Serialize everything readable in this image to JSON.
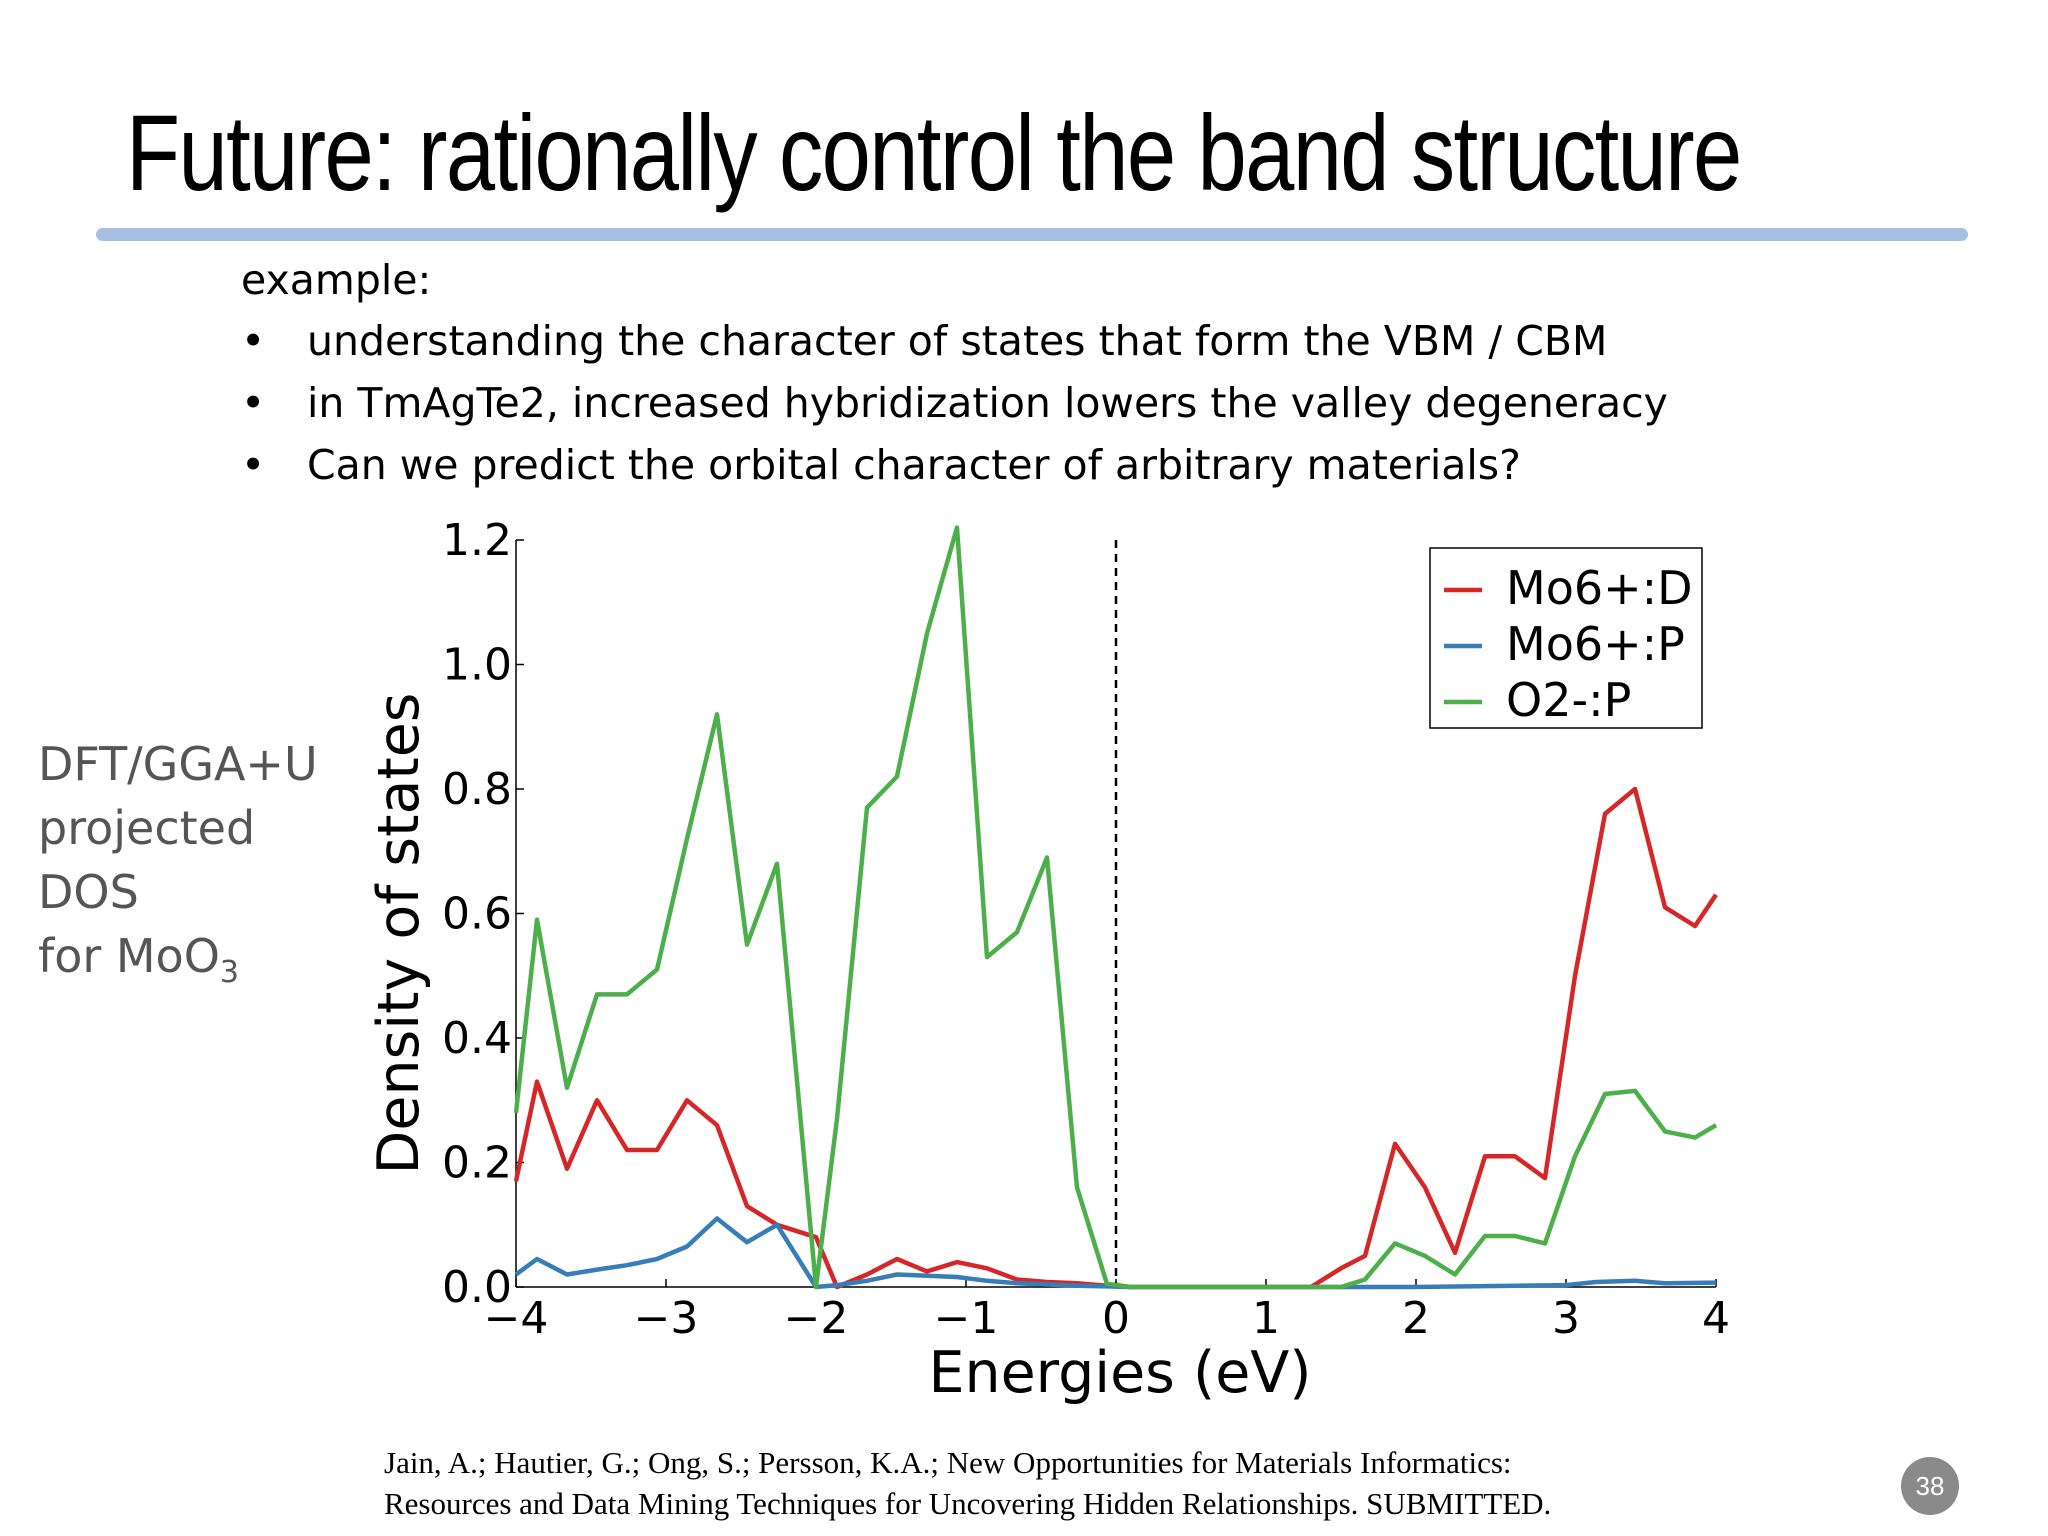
{
  "slide": {
    "title": "Future: rationally control the band structure",
    "intro": "example:",
    "bullet_mark": "•",
    "bullets": [
      "understanding the character of states that form the VBM / CBM",
      "in TmAgTe2, increased hybridization lowers the valley degeneracy",
      "Can we predict the orbital character of arbitrary materials?"
    ],
    "side_label": {
      "line1": "DFT/GGA+U",
      "line2": "projected",
      "line3": "DOS",
      "line4_prefix": "for MoO",
      "line4_sub": "3"
    },
    "reference_line1": "Jain, A.; Hautier, G.; Ong, S.; Persson, K.A.; New Opportunities for Materials Informatics:",
    "reference_line2": "Resources and Data Mining Techniques for Uncovering Hidden Relationships. SUBMITTED.",
    "page_number": "38"
  },
  "colors": {
    "accent_rule": "#a7c0e2",
    "side_text": "#555555"
  },
  "chart_data": {
    "type": "line",
    "xlabel": "Energies (eV)",
    "ylabel": "Density of states",
    "xlim": [
      -4,
      4
    ],
    "ylim": [
      0,
      1.2
    ],
    "xticks": [
      -4,
      -3,
      -2,
      -1,
      0,
      1,
      2,
      3,
      4
    ],
    "xtick_labels": [
      "−4",
      "−3",
      "−2",
      "−1",
      "0",
      "1",
      "2",
      "3",
      "4"
    ],
    "yticks": [
      0.0,
      0.2,
      0.4,
      0.6,
      0.8,
      1.0,
      1.2
    ],
    "ytick_labels": [
      "0.0",
      "0.2",
      "0.4",
      "0.6",
      "0.8",
      "1.0",
      "1.2"
    ],
    "fermi_line_x": 0,
    "legend_position": "top-right",
    "series": [
      {
        "name": "Mo6+:D",
        "color": "#d62728",
        "x": [
          -4.0,
          -3.86,
          -3.66,
          -3.46,
          -3.26,
          -3.06,
          -2.86,
          -2.66,
          -2.46,
          -2.26,
          -2.0,
          -1.86,
          -1.66,
          -1.46,
          -1.26,
          -1.06,
          -0.86,
          -0.66,
          -0.46,
          -0.26,
          -0.06,
          0.1,
          1.3,
          1.5,
          1.66,
          1.86,
          2.06,
          2.26,
          2.46,
          2.66,
          2.86,
          3.06,
          3.26,
          3.46,
          3.66,
          3.86,
          4.0
        ],
        "values": [
          0.17,
          0.33,
          0.19,
          0.3,
          0.22,
          0.22,
          0.3,
          0.26,
          0.13,
          0.1,
          0.08,
          0.0,
          0.02,
          0.045,
          0.025,
          0.04,
          0.03,
          0.012,
          0.008,
          0.006,
          0.002,
          0.0,
          0.0,
          0.03,
          0.05,
          0.23,
          0.16,
          0.055,
          0.21,
          0.21,
          0.175,
          0.5,
          0.76,
          0.8,
          0.61,
          0.58,
          0.63
        ]
      },
      {
        "name": "Mo6+:P",
        "color": "#377eb8",
        "x": [
          -4.0,
          -3.86,
          -3.66,
          -3.46,
          -3.26,
          -3.06,
          -2.86,
          -2.66,
          -2.46,
          -2.26,
          -2.0,
          -1.86,
          -1.66,
          -1.46,
          -1.26,
          -1.06,
          -0.86,
          -0.66,
          -0.46,
          -0.26,
          -0.06,
          0.1,
          2.0,
          3.0,
          3.2,
          3.46,
          3.66,
          4.0
        ],
        "values": [
          0.02,
          0.045,
          0.02,
          0.028,
          0.035,
          0.045,
          0.065,
          0.11,
          0.072,
          0.1,
          0.0,
          0.003,
          0.01,
          0.02,
          0.018,
          0.016,
          0.01,
          0.006,
          0.004,
          0.002,
          0.001,
          0.0,
          0.0,
          0.003,
          0.008,
          0.01,
          0.006,
          0.007
        ]
      },
      {
        "name": "O2-:P",
        "color": "#4daf4a",
        "x": [
          -4.0,
          -3.86,
          -3.66,
          -3.46,
          -3.26,
          -3.06,
          -2.86,
          -2.66,
          -2.46,
          -2.26,
          -2.0,
          -1.86,
          -1.66,
          -1.46,
          -1.26,
          -1.06,
          -0.86,
          -0.66,
          -0.46,
          -0.26,
          -0.06,
          0.1,
          1.5,
          1.66,
          1.86,
          2.06,
          2.26,
          2.46,
          2.66,
          2.86,
          3.06,
          3.26,
          3.46,
          3.66,
          3.86,
          4.0
        ],
        "values": [
          0.28,
          0.59,
          0.32,
          0.47,
          0.47,
          0.51,
          0.72,
          0.92,
          0.55,
          0.68,
          0.0,
          0.27,
          0.77,
          0.82,
          1.05,
          1.22,
          0.53,
          0.57,
          0.69,
          0.16,
          0.005,
          0.0,
          0.0,
          0.012,
          0.07,
          0.05,
          0.02,
          0.082,
          0.082,
          0.07,
          0.21,
          0.31,
          0.315,
          0.25,
          0.24,
          0.26
        ]
      }
    ]
  }
}
